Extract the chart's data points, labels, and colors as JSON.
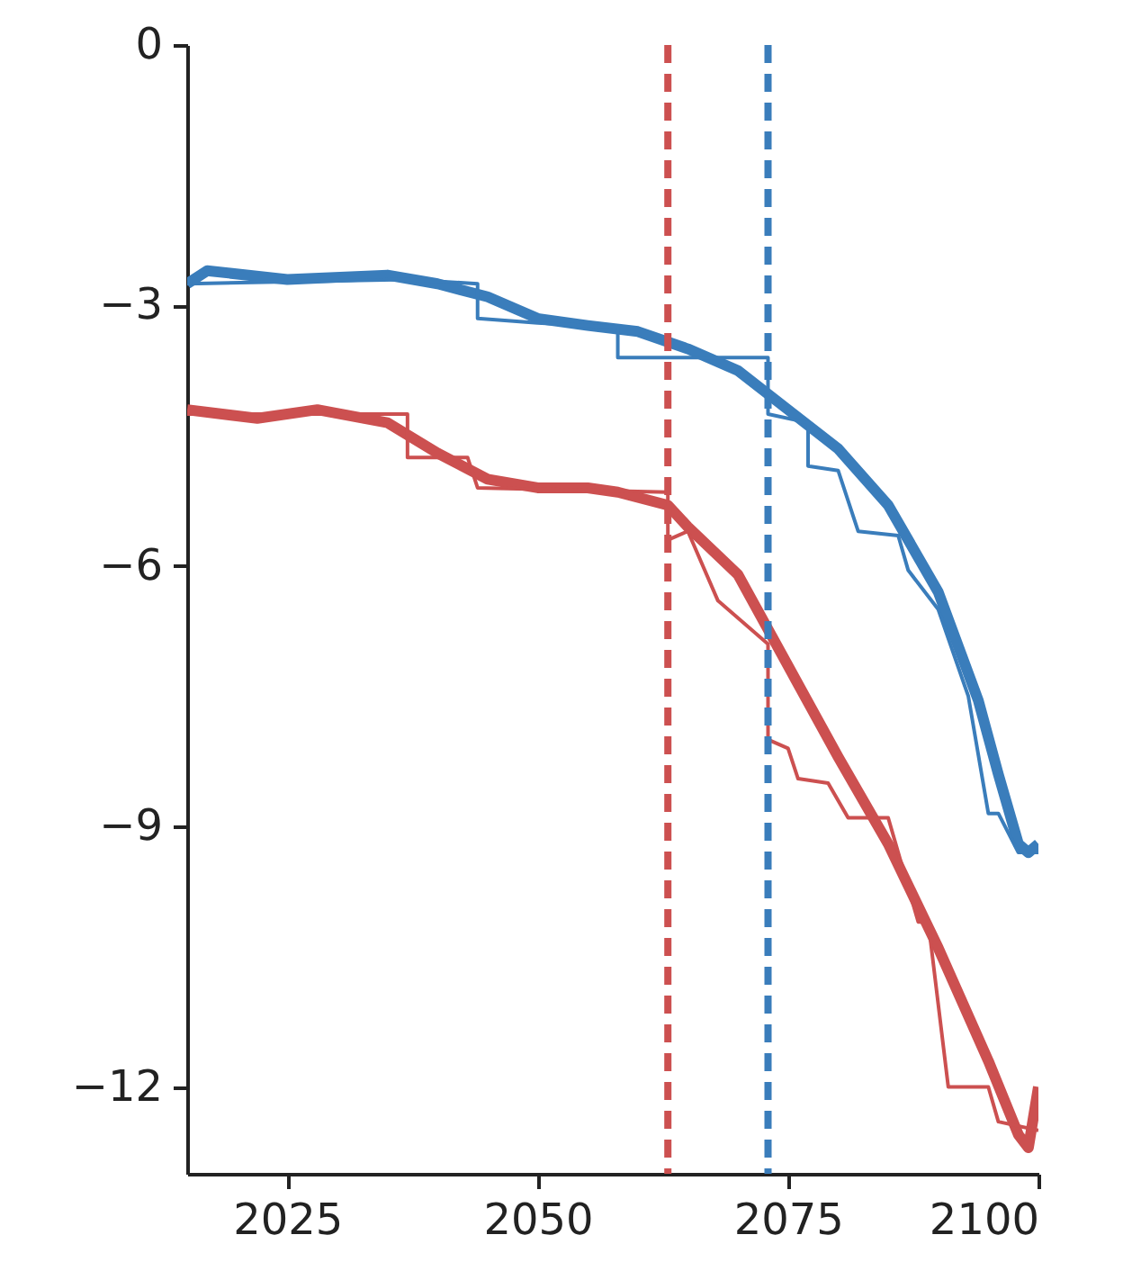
{
  "chart_data": {
    "type": "line",
    "xlim": [
      2015,
      2100
    ],
    "ylim": [
      -13,
      0
    ],
    "xticks": [
      2025,
      2050,
      2075,
      2100
    ],
    "yticks": [
      {
        "value": 0,
        "label": "0"
      },
      {
        "value": -3,
        "label": "−3"
      },
      {
        "value": -6,
        "label": "−6"
      },
      {
        "value": -9,
        "label": "−9"
      },
      {
        "value": -12,
        "label": "−12"
      }
    ],
    "grid": false,
    "line_style": "solid",
    "series": [
      {
        "color": "#3a7dbb",
        "x": [
          2015,
          2017,
          2025,
          2035,
          2040,
          2045,
          2050,
          2055,
          2060,
          2065,
          2070,
          2075,
          2080,
          2085,
          2090,
          2094,
          2096,
          2098,
          2099,
          2100
        ],
        "values": [
          -2.75,
          -2.6,
          -2.7,
          -2.65,
          -2.75,
          -2.9,
          -3.15,
          -3.23,
          -3.3,
          -3.5,
          -3.75,
          -4.2,
          -4.65,
          -5.3,
          -6.3,
          -7.55,
          -8.4,
          -9.2,
          -9.3,
          -9.2
        ]
      },
      {
        "color": "#3a7dbb",
        "x": [
          2015,
          2037,
          2044,
          2044,
          2050,
          2058,
          2058,
          2073,
          2073,
          2077,
          2077,
          2080,
          2082,
          2086,
          2087,
          2090,
          2093,
          2095,
          2096,
          2098,
          2100
        ],
        "values": [
          -2.75,
          -2.7,
          -2.75,
          -3.15,
          -3.2,
          -3.25,
          -3.6,
          -3.6,
          -4.25,
          -4.35,
          -4.85,
          -4.9,
          -5.6,
          -5.65,
          -6.05,
          -6.5,
          -7.5,
          -8.85,
          -8.85,
          -9.3,
          -9.3
        ]
      },
      {
        "color": "#cc5050",
        "x": [
          2015,
          2022,
          2028,
          2035,
          2040,
          2045,
          2050,
          2055,
          2058,
          2063,
          2065,
          2070,
          2075,
          2080,
          2085,
          2090,
          2095,
          2098,
          2099,
          2100
        ],
        "values": [
          -4.2,
          -4.3,
          -4.2,
          -4.35,
          -4.7,
          -5.0,
          -5.1,
          -5.1,
          -5.15,
          -5.3,
          -5.55,
          -6.1,
          -7.15,
          -8.2,
          -9.2,
          -10.4,
          -11.7,
          -12.55,
          -12.7,
          -12.0
        ]
      },
      {
        "color": "#cc5050",
        "x": [
          2015,
          2037,
          2037,
          2043,
          2044,
          2063,
          2063,
          2065,
          2068,
          2073,
          2073,
          2075,
          2076,
          2079,
          2081,
          2085,
          2088,
          2089,
          2091,
          2095,
          2096,
          2100
        ],
        "values": [
          -4.25,
          -4.25,
          -4.75,
          -4.75,
          -5.1,
          -5.15,
          -5.7,
          -5.6,
          -6.4,
          -6.9,
          -8.0,
          -8.1,
          -8.45,
          -8.5,
          -8.9,
          -8.9,
          -10.1,
          -10.1,
          -12.0,
          -12.0,
          -12.4,
          -12.5
        ]
      }
    ],
    "ref_lines": [
      {
        "axis": "x",
        "value": 2063,
        "color": "#cc5050",
        "line_style": "dashed"
      },
      {
        "axis": "x",
        "value": 2073,
        "color": "#3a7dbb",
        "line_style": "dashed"
      }
    ]
  }
}
